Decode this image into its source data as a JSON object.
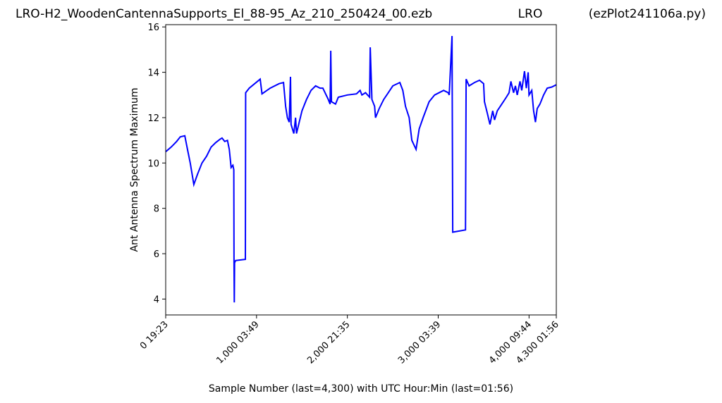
{
  "chart_data": {
    "type": "line",
    "title": [
      "LRO-H2_WoodenCantennaSupports_El_88-95_Az_210_250424_00.ezb",
      "LRO",
      "(ezPlot241106a.py)"
    ],
    "ylabel": "Ant Antenna Spectrum Maximum",
    "xlabel": "Sample Number (last=4,300) with UTC Hour:Min (last=01:56)",
    "xlim": [
      0,
      4300
    ],
    "ylim": [
      3.3,
      16.1
    ],
    "xticks": [
      {
        "value": 0,
        "label": "0  19:23"
      },
      {
        "value": 1000,
        "label": "1,000  03:49"
      },
      {
        "value": 2000,
        "label": "2,000  21:35"
      },
      {
        "value": 3000,
        "label": "3,000  03:39"
      },
      {
        "value": 4000,
        "label": "4,000  09:44"
      },
      {
        "value": 4300,
        "label": "4,300  01:56"
      }
    ],
    "yticks": [
      4,
      6,
      8,
      10,
      12,
      14,
      16
    ],
    "series": [
      {
        "color": "#0000ff",
        "x": [
          0,
          60,
          120,
          160,
          210,
          240,
          270,
          310,
          350,
          400,
          450,
          500,
          550,
          600,
          620,
          650,
          680,
          700,
          720,
          740,
          750,
          752,
          755,
          758,
          770,
          877,
          880,
          920,
          980,
          1040,
          1060,
          1150,
          1250,
          1297,
          1320,
          1340,
          1360,
          1374,
          1380,
          1410,
          1430,
          1440,
          1500,
          1550,
          1600,
          1650,
          1700,
          1730,
          1790,
          1810,
          1817,
          1825,
          1870,
          1900,
          2000,
          2100,
          2140,
          2160,
          2200,
          2245,
          2252,
          2270,
          2300,
          2310,
          2350,
          2400,
          2450,
          2500,
          2578,
          2610,
          2640,
          2680,
          2710,
          2756,
          2790,
          2834,
          2900,
          2960,
          3060,
          3110,
          3121,
          3152,
          3160,
          3300,
          3307,
          3340,
          3400,
          3455,
          3500,
          3509,
          3540,
          3570,
          3600,
          3620,
          3650,
          3700,
          3750,
          3780,
          3800,
          3830,
          3850,
          3870,
          3900,
          3920,
          3950,
          3970,
          3990,
          4000,
          4030,
          4050,
          4070,
          4090,
          4120,
          4160,
          4200,
          4250,
          4300
        ],
        "values": [
          10.5,
          10.7,
          10.95,
          11.15,
          11.2,
          10.6,
          10.0,
          9.05,
          9.5,
          10.0,
          10.3,
          10.7,
          10.9,
          11.05,
          11.1,
          10.95,
          11.0,
          10.6,
          9.8,
          9.9,
          9.7,
          5.6,
          3.85,
          5.6,
          5.7,
          5.75,
          13.1,
          13.3,
          13.5,
          13.7,
          13.05,
          13.3,
          13.5,
          13.55,
          12.5,
          12.0,
          11.8,
          13.8,
          11.7,
          11.3,
          12.0,
          11.3,
          12.3,
          12.8,
          13.2,
          13.4,
          13.3,
          13.3,
          12.8,
          12.6,
          14.95,
          12.7,
          12.6,
          12.9,
          13.0,
          13.05,
          13.2,
          13.0,
          13.1,
          12.9,
          15.1,
          12.8,
          12.5,
          12.0,
          12.4,
          12.8,
          13.1,
          13.4,
          13.55,
          13.2,
          12.5,
          12.0,
          11.0,
          10.6,
          11.5,
          12.0,
          12.7,
          13.0,
          13.2,
          13.1,
          13.0,
          15.6,
          6.95,
          7.05,
          13.7,
          13.4,
          13.55,
          13.65,
          13.5,
          12.7,
          12.2,
          11.7,
          12.3,
          11.9,
          12.3,
          12.6,
          12.9,
          13.1,
          13.6,
          13.1,
          13.4,
          13.0,
          13.6,
          13.2,
          14.05,
          13.3,
          14.0,
          13.0,
          13.2,
          12.3,
          11.8,
          12.4,
          12.6,
          13.0,
          13.3,
          13.35,
          13.45
        ]
      }
    ]
  }
}
